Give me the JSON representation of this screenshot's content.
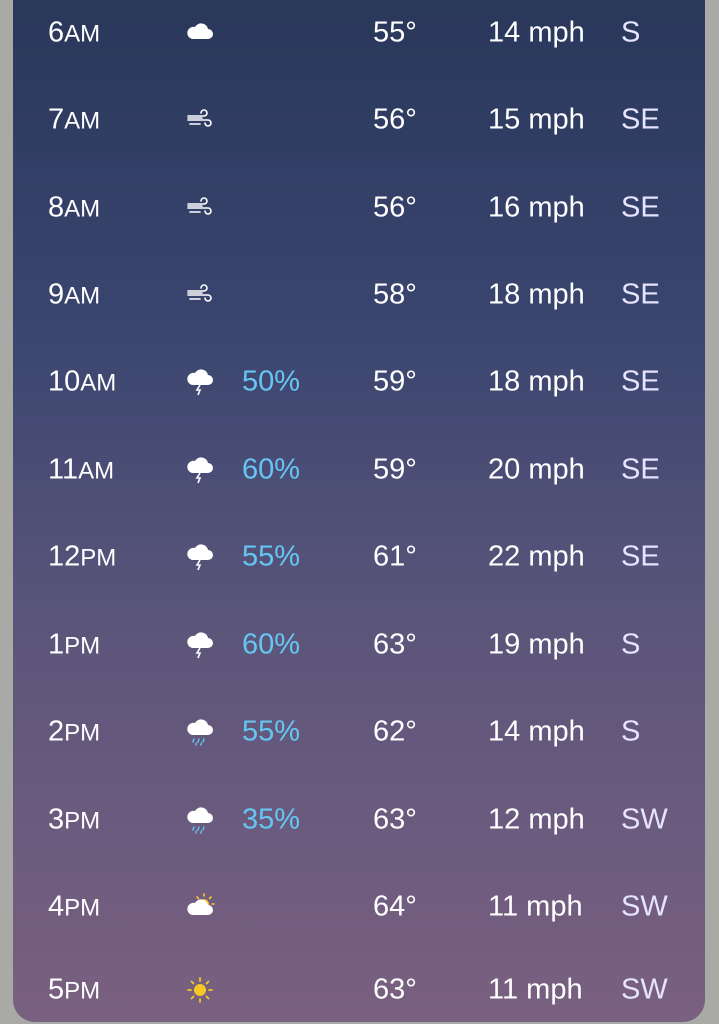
{
  "colors": {
    "precip": "#66c6f3",
    "sun": "#f7c825",
    "background_top": "#283659",
    "background_bottom": "#7a6081"
  },
  "hours": [
    {
      "hour": "6",
      "period": "AM",
      "icon": "cloud-icon",
      "precip": "",
      "temp": "55°",
      "wind": "14 mph",
      "dir": "S"
    },
    {
      "hour": "7",
      "period": "AM",
      "icon": "wind-icon",
      "precip": "",
      "temp": "56°",
      "wind": "15 mph",
      "dir": "SE"
    },
    {
      "hour": "8",
      "period": "AM",
      "icon": "wind-icon",
      "precip": "",
      "temp": "56°",
      "wind": "16 mph",
      "dir": "SE"
    },
    {
      "hour": "9",
      "period": "AM",
      "icon": "wind-icon",
      "precip": "",
      "temp": "58°",
      "wind": "18 mph",
      "dir": "SE"
    },
    {
      "hour": "10",
      "period": "AM",
      "icon": "thunderstorm-icon",
      "precip": "50%",
      "temp": "59°",
      "wind": "18 mph",
      "dir": "SE"
    },
    {
      "hour": "11",
      "period": "AM",
      "icon": "thunderstorm-icon",
      "precip": "60%",
      "temp": "59°",
      "wind": "20 mph",
      "dir": "SE"
    },
    {
      "hour": "12",
      "period": "PM",
      "icon": "thunderstorm-icon",
      "precip": "55%",
      "temp": "61°",
      "wind": "22 mph",
      "dir": "SE"
    },
    {
      "hour": "1",
      "period": "PM",
      "icon": "thunderstorm-icon",
      "precip": "60%",
      "temp": "63°",
      "wind": "19 mph",
      "dir": "S"
    },
    {
      "hour": "2",
      "period": "PM",
      "icon": "rain-icon",
      "precip": "55%",
      "temp": "62°",
      "wind": "14 mph",
      "dir": "S"
    },
    {
      "hour": "3",
      "period": "PM",
      "icon": "rain-icon",
      "precip": "35%",
      "temp": "63°",
      "wind": "12 mph",
      "dir": "SW"
    },
    {
      "hour": "4",
      "period": "PM",
      "icon": "partly-sunny-icon",
      "precip": "",
      "temp": "64°",
      "wind": "11 mph",
      "dir": "SW"
    },
    {
      "hour": "5",
      "period": "PM",
      "icon": "sun-icon",
      "precip": "",
      "temp": "63°",
      "wind": "11 mph",
      "dir": "SW"
    }
  ]
}
